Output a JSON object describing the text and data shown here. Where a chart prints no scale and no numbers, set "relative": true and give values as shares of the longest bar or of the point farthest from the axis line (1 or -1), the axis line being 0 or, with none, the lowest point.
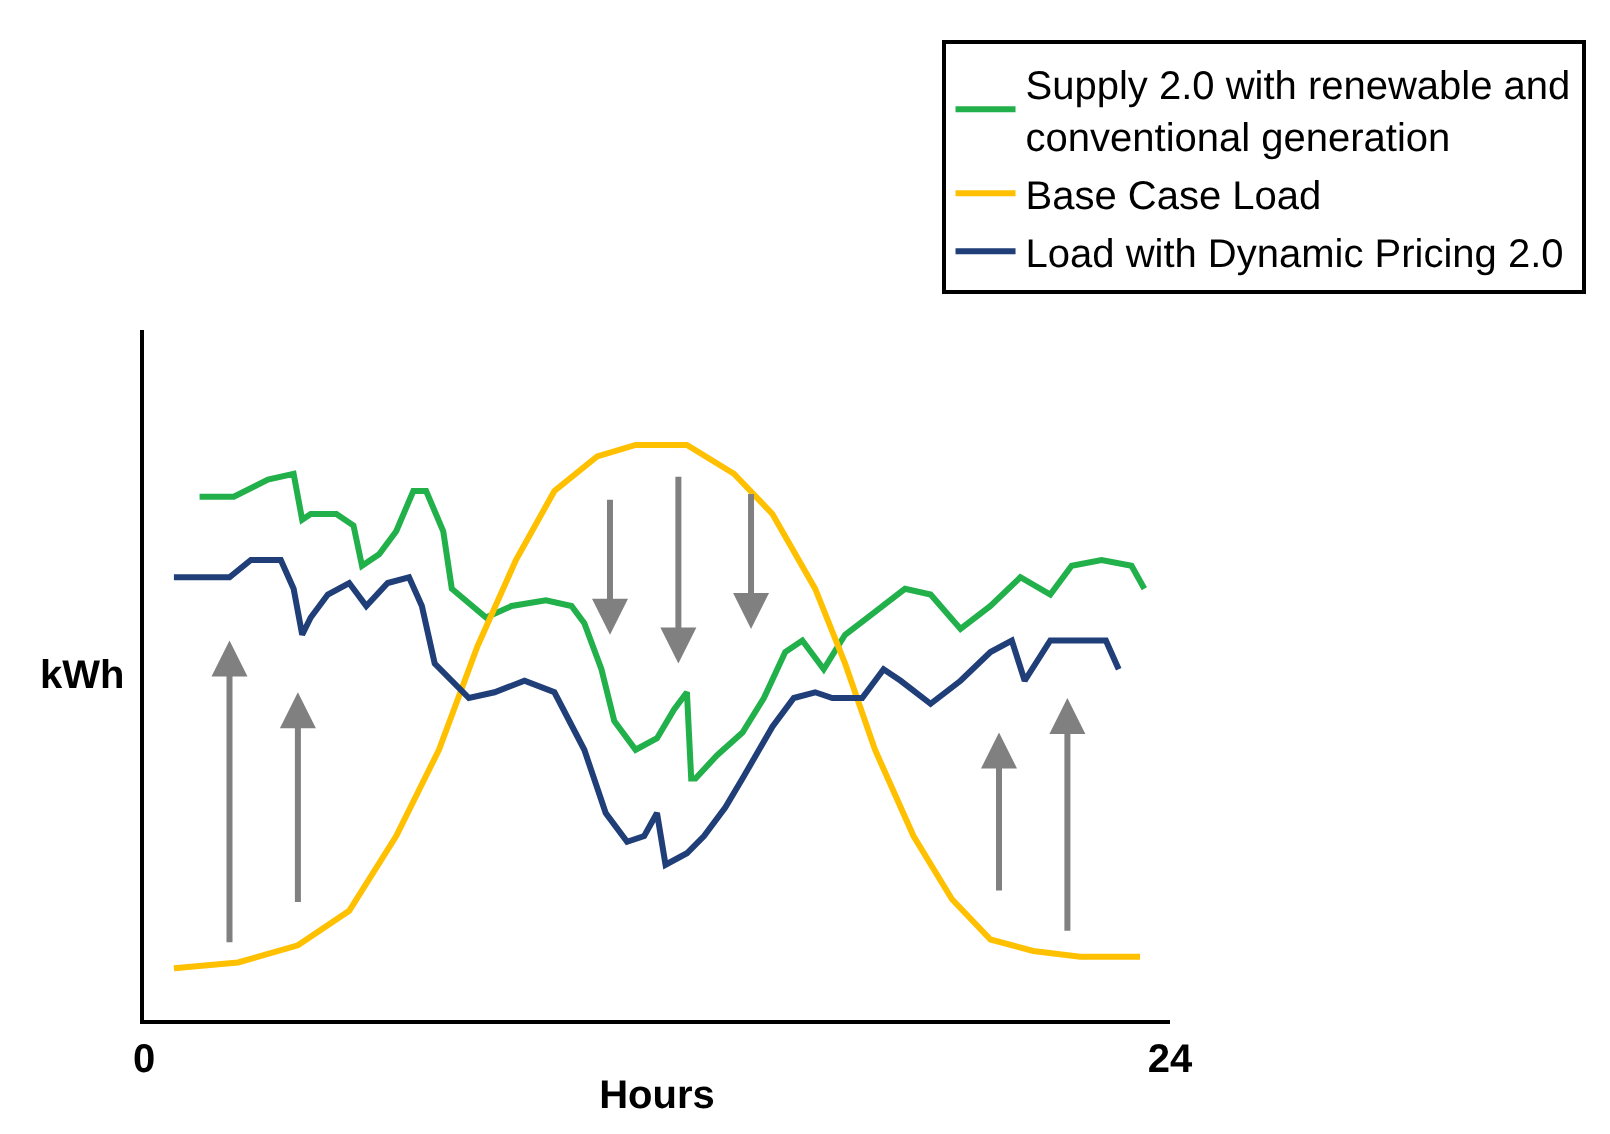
{
  "chart_data": {
    "type": "line",
    "relative": true,
    "xlabel": "Hours",
    "ylabel": "kWh",
    "xlim": [
      0,
      24
    ],
    "xticks": [
      0,
      24
    ],
    "legend": "top right",
    "marker": "none",
    "line_style": "solid",
    "series": [
      {
        "name": "Supply 2.0 with renewable and conventional generation",
        "color": "#22b04b",
        "x": [
          1.3,
          2.1,
          2.9,
          3.5,
          3.7,
          3.9,
          4.5,
          4.9,
          5.1,
          5.5,
          5.9,
          6.3,
          6.6,
          7.0,
          7.2,
          8.0,
          8.6,
          9.4,
          10.0,
          10.3,
          10.7,
          11.0,
          11.5,
          12.0,
          12.4,
          12.7,
          12.8,
          12.9,
          13.4,
          14.0,
          14.5,
          15.0,
          15.4,
          15.9,
          16.4,
          17.1,
          17.8,
          18.4,
          19.1,
          19.8,
          20.5,
          21.2,
          21.7,
          22.4,
          23.1,
          23.4
        ],
        "values": [
          0.91,
          0.91,
          0.94,
          0.95,
          0.87,
          0.88,
          0.88,
          0.86,
          0.79,
          0.81,
          0.85,
          0.92,
          0.92,
          0.85,
          0.75,
          0.7,
          0.72,
          0.73,
          0.72,
          0.69,
          0.61,
          0.52,
          0.47,
          0.49,
          0.54,
          0.57,
          0.42,
          0.42,
          0.46,
          0.5,
          0.56,
          0.64,
          0.66,
          0.61,
          0.67,
          0.71,
          0.75,
          0.74,
          0.68,
          0.72,
          0.77,
          0.74,
          0.79,
          0.8,
          0.79,
          0.75
        ]
      },
      {
        "name": "Base Case Load",
        "color": "#ffc000",
        "x": [
          0.7,
          2.2,
          3.6,
          4.8,
          5.9,
          6.9,
          7.8,
          8.7,
          9.6,
          10.6,
          11.5,
          12.7,
          13.8,
          14.7,
          15.7,
          16.4,
          17.1,
          18.0,
          18.9,
          19.8,
          20.8,
          21.9,
          23.3
        ],
        "values": [
          0.09,
          0.1,
          0.13,
          0.19,
          0.32,
          0.47,
          0.65,
          0.8,
          0.92,
          0.98,
          1.0,
          1.0,
          0.95,
          0.88,
          0.75,
          0.62,
          0.47,
          0.32,
          0.21,
          0.14,
          0.12,
          0.11,
          0.11
        ]
      },
      {
        "name": "Load with Dynamic Pricing 2.0",
        "color": "#203f78",
        "x": [
          0.7,
          2.0,
          2.5,
          3.2,
          3.5,
          3.7,
          3.9,
          4.3,
          4.8,
          5.2,
          5.7,
          6.2,
          6.5,
          6.8,
          7.6,
          8.2,
          8.9,
          9.6,
          10.3,
          10.8,
          11.3,
          11.7,
          12.0,
          12.2,
          12.7,
          13.1,
          13.6,
          14.0,
          14.7,
          15.2,
          15.7,
          16.1,
          16.8,
          17.3,
          17.7,
          18.4,
          19.1,
          19.8,
          20.3,
          20.6,
          21.2,
          21.9,
          22.5,
          22.8
        ],
        "values": [
          0.77,
          0.77,
          0.8,
          0.8,
          0.75,
          0.67,
          0.7,
          0.74,
          0.76,
          0.72,
          0.76,
          0.77,
          0.72,
          0.62,
          0.56,
          0.57,
          0.59,
          0.57,
          0.47,
          0.36,
          0.31,
          0.32,
          0.36,
          0.27,
          0.29,
          0.32,
          0.37,
          0.42,
          0.51,
          0.56,
          0.57,
          0.56,
          0.56,
          0.61,
          0.59,
          0.55,
          0.59,
          0.64,
          0.66,
          0.59,
          0.66,
          0.66,
          0.66,
          0.61
        ]
      }
    ]
  }
}
